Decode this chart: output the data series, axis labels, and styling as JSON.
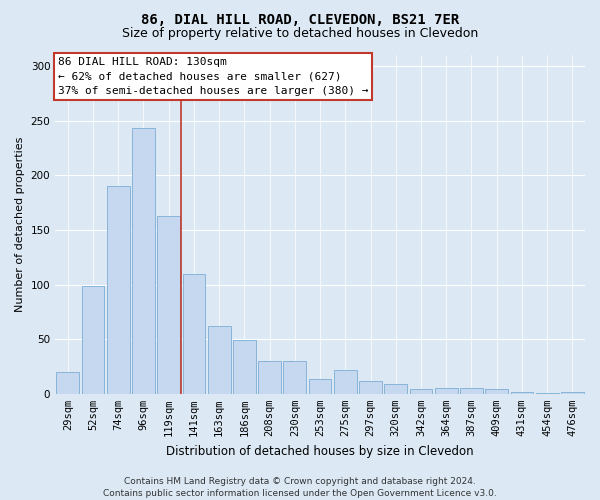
{
  "title1": "86, DIAL HILL ROAD, CLEVEDON, BS21 7ER",
  "title2": "Size of property relative to detached houses in Clevedon",
  "xlabel": "Distribution of detached houses by size in Clevedon",
  "ylabel": "Number of detached properties",
  "footer": "Contains HM Land Registry data © Crown copyright and database right 2024.\nContains public sector information licensed under the Open Government Licence v3.0.",
  "categories": [
    "29sqm",
    "52sqm",
    "74sqm",
    "96sqm",
    "119sqm",
    "141sqm",
    "163sqm",
    "186sqm",
    "208sqm",
    "230sqm",
    "253sqm",
    "275sqm",
    "297sqm",
    "320sqm",
    "342sqm",
    "364sqm",
    "387sqm",
    "409sqm",
    "431sqm",
    "454sqm",
    "476sqm"
  ],
  "values": [
    20,
    99,
    190,
    243,
    163,
    110,
    62,
    49,
    30,
    30,
    14,
    22,
    12,
    9,
    4,
    5,
    5,
    4,
    2,
    1,
    2
  ],
  "bar_color": "#c5d8f0",
  "bar_edge_color": "#7aadd4",
  "annotation_box_text": "86 DIAL HILL ROAD: 130sqm\n← 62% of detached houses are smaller (627)\n37% of semi-detached houses are larger (380) →",
  "annotation_box_edge_color": "#c0392b",
  "red_line_x": 4.5,
  "red_line_color": "#c0392b",
  "ylim": [
    0,
    310
  ],
  "yticks": [
    0,
    50,
    100,
    150,
    200,
    250,
    300
  ],
  "background_color": "#dce9f5",
  "plot_background_color": "#dce9f5",
  "grid_color": "#ffffff",
  "title1_fontsize": 10,
  "title2_fontsize": 9,
  "xlabel_fontsize": 8.5,
  "ylabel_fontsize": 8,
  "tick_fontsize": 7.5,
  "annot_fontsize": 8,
  "footer_fontsize": 6.5
}
